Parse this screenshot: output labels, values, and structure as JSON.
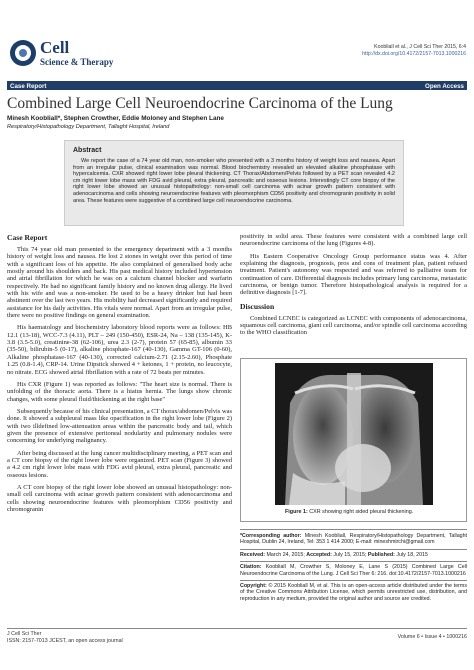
{
  "header": {
    "journal_name": "Cell",
    "journal_subtitle": "Science & Therapy",
    "citation_line": "Koobliall et al., J Cell Sci Ther 2015, 6:4",
    "doi_link": "http://dx.doi.org/10.4172/2157-7013.1000216",
    "article_type": "Case Report",
    "access": "Open Access"
  },
  "article": {
    "title": "Combined Large Cell Neuroendocrine Carcinoma of the Lung",
    "authors": "Minesh Koobliall*, Stephen Crowther, Eddie Moloney and Stephen Lane",
    "affiliation": "Respiratory/Histopathology Department, Tallaght Hospital, Ireland"
  },
  "abstract": {
    "heading": "Abstract",
    "text": "We report the case of a 74 year old man, non-smoker who presented with a 3 months history of weight loss and nausea. Apart from an irregular pulse, clinical examination was normal. Blood biochemistry revealed an elevated alkaline phosphatase with hypercalcemia. CXR showed right lower lobe pleural thickening. CT Thorax/Abdomen/Pelvis followed by a PET scan revealed 4.2 cm right lower lobe mass with FDG avid pleural, extra pleural, pancreatic and osseous lesions. Interestingly CT core biopsy of the right lower lobe showed an unusual histopathology: non-small cell carcinoma with acinar growth pattern consistent with adenocarcinoma and cells showing neuroendocrine features with pleomorphism CD56 positivity and chromogranin positivity in solid area. These features were suggestive of a combined large cell neuroendocrine carcinoma."
  },
  "case_report": {
    "heading": "Case Report",
    "paragraphs": [
      "This 74 year old man presented to the emergency department with a 3 months history of weight loss and nausea. He lost 2 stones in weight over this period of time with a significant loss of his appetite. He also complained of generalised body ache mostly around his shoulders and back. His past medical history included hypertension and atrial fibrillation for which he was on a calcium channel blocker and warfarin respectively. He had no significant family history and no known drug allergy. He lived with his wife and was a non-smoker. He used to be a heavy drinker but had been abstinent over the last two years. His mobility had decreased significantly and required assistance for his daily activities. His vitals were normal. Apart from an irregular pulse, there were no positive findings on general examination.",
      "His haematology and biochemistry laboratory blood reports were as follows: HB 12.1 (13-18), WCC-7.3 (4.11), PLT – 249 (150-450), ESR-24, Na – 138 (135-145), K-3.8 (3.5-5.0), creatinine-38 (62-106), urea 2.3 (2-7), protein 57 (65-85), albumin 33 (35-50), bilirubin-5 (0-17), alkaline phosphate-167 (40-130), Gamma GT-106 (0-60), Alkaline phosphatase-167 (40-130), corrected calcium-2.71 (2.15-2.60), Phosphate 1.25 (0.8-1.4), CRP-14. Urine Dipstick showed 4 + ketones, 1 + protein, no leucocyte, no nitrate. ECG showed atrial fibrillation with a rate of 72 beats per minutes.",
      "His CXR (Figure 1) was reported as follows: \"The heart size is normal. There is unfolding of the thoracic aorta. There is a hiatus hernia. The lungs show chronic changes, with some pleural fluid/thickening at the right base\"",
      "Subsequently because of his clinical presentation, a CT thorax/abdomen/Pelvis was done. It showed a subpleural mass like opacification in the right lower lobe (Figure 2) with two illdefined low-attenuation areas within the pancreatic body and tail, which given the presence of extensive peritoneal nodularity and pulmonary nodules were concerning for underlying malignancy.",
      "After being discussed at the lung cancer multidisciplinary meeting, a PET scan and a CT core biopsy of the right lower lobe were organized. PET scan (Figure 3) showed a 4.2 cm right lower lobe mass with FDG avid pleural, extra pleural, pancreatic and osseous lesions.",
      "A CT core biopsy of the right lower lobe showed an unusual histopathology: non-small cell carcinoma with acinar growth pattern consistent with adenocarcinoma and cells showing neuroendocrine features with pleomorphism CD56 positivity and chromogranin"
    ],
    "continuation": [
      "positivity in solid area. These features were consistent with a combined large cell neuroendocrine carcinoma of the lung (Figures 4-8).",
      "His Eastern Cooperative Oncology Group performance status was 4. After explaining the diagnosis, prognosis, pros and cons of treatment plan, patient refused treatment. Patient's autonomy was respected and was referred to palliative team for continuation of care. Differential diagnosis includes primary lung carcinoma, metastatic carcinoma, or benign tumor. Therefore histopathological analysis is required for a definitive diagnosis [1-7]."
    ]
  },
  "discussion": {
    "heading": "Discussion",
    "paragraphs": [
      "Combined LCNEC is categorized as LCNEC with components of adenocarcinoma, squamous cell carcinoma, giant cell carcinoma, and/or spindle cell carcinoma according to the WHO classification"
    ]
  },
  "figure": {
    "label": "Figure 1:",
    "caption": "CXR showing right sided pleural thickening."
  },
  "meta": {
    "corresponding": {
      "label": "*Corresponding author:",
      "text": "Minesh Koobliall, Respiratory/Histopathology Department, Tallaght Hospital, Dublin 24, Ireland, Tel: 353 1 414 2000; E-mail: mineshmirchi@gmail.com"
    },
    "received": {
      "label": "Received:",
      "text": "March 24, 2015;"
    },
    "accepted": {
      "label": "Accepted:",
      "text": "July 15, 2015;"
    },
    "published": {
      "label": "Published:",
      "text": "July 18, 2015"
    },
    "citation": {
      "label": "Citation:",
      "text": "Koobliall M, Crowther S, Moloney E, Lane S (2015) Combined Large Cell Neuroendocrine Carcinoma of the Lung. J Cell Sci Ther 6: 216. doi:10.4172/2157-7013.1000216"
    },
    "copyright": {
      "label": "Copyright:",
      "text": "© 2015 Koobliall M, et al. This is an open-access article distributed under the terms of the Creative Commons Attribution License, which permits unrestricted use, distribution, and reproduction in any medium, provided the original author and source are credited."
    }
  },
  "footer": {
    "journal": "J Cell Sci Ther",
    "issn": "ISSN: 2157-7013 JCEST, an open access journal",
    "volume": "Volume 6 • Issue 4 • 1000216"
  }
}
